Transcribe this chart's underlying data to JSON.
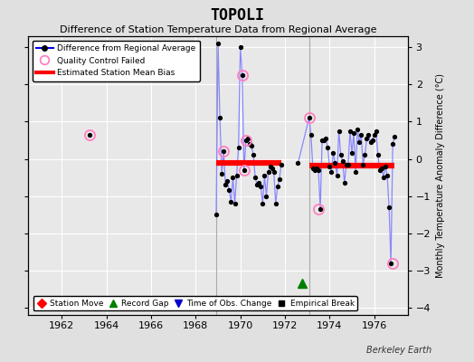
{
  "title": "TOPOLI",
  "subtitle": "Difference of Station Temperature Data from Regional Average",
  "ylabel_right": "Monthly Temperature Anomaly Difference (°C)",
  "background_color": "#e0e0e0",
  "plot_bg_color": "#e8e8e8",
  "xlim": [
    1960.5,
    1977.5
  ],
  "ylim": [
    -4.2,
    3.3
  ],
  "yticks": [
    -4,
    -3,
    -2,
    -1,
    0,
    1,
    2,
    3
  ],
  "xticks": [
    1962,
    1964,
    1966,
    1968,
    1970,
    1972,
    1974,
    1976
  ],
  "line_data_x": [
    1968.917,
    1969.0,
    1969.083,
    1969.167,
    1969.25,
    1969.333,
    1969.417,
    1969.5,
    1969.583,
    1969.667,
    1969.75,
    1969.833,
    1969.917,
    1970.0,
    1970.083,
    1970.167,
    1970.25,
    1970.333,
    1970.417,
    1970.5,
    1970.583,
    1970.667,
    1970.75,
    1970.833,
    1970.917,
    1971.0,
    1971.083,
    1971.167,
    1971.25,
    1971.333,
    1971.417,
    1971.5,
    1971.583,
    1971.667,
    1971.75,
    1971.833,
    1972.583,
    1973.083,
    1973.167,
    1973.25,
    1973.333,
    1973.417,
    1973.5,
    1973.583,
    1973.667,
    1973.75,
    1973.833,
    1973.917,
    1974.0,
    1974.083,
    1974.167,
    1974.25,
    1974.333,
    1974.417,
    1974.5,
    1974.583,
    1974.667,
    1974.75,
    1974.833,
    1974.917,
    1975.0,
    1975.083,
    1975.167,
    1975.25,
    1975.333,
    1975.417,
    1975.5,
    1975.583,
    1975.667,
    1975.75,
    1975.833,
    1975.917,
    1976.0,
    1976.083,
    1976.167,
    1976.25,
    1976.333,
    1976.417,
    1976.5,
    1976.583,
    1976.667,
    1976.75,
    1976.833,
    1976.917
  ],
  "line_data_y": [
    -1.5,
    3.1,
    1.1,
    -0.4,
    0.2,
    -0.7,
    -0.6,
    -0.85,
    -1.15,
    -0.5,
    -1.2,
    -0.45,
    0.3,
    3.0,
    2.25,
    -0.3,
    0.5,
    0.55,
    0.4,
    0.35,
    0.1,
    -0.5,
    -0.7,
    -0.65,
    -0.75,
    -1.2,
    -0.45,
    -1.0,
    -0.35,
    -0.2,
    -0.25,
    -0.35,
    -1.2,
    -0.75,
    -0.55,
    -0.15,
    -0.12,
    1.1,
    0.65,
    -0.25,
    -0.3,
    -0.25,
    -0.3,
    -1.35,
    0.5,
    0.5,
    0.55,
    0.3,
    -0.2,
    -0.35,
    0.15,
    -0.1,
    -0.45,
    0.75,
    0.1,
    -0.05,
    -0.65,
    -0.15,
    -0.15,
    0.75,
    0.15,
    0.7,
    -0.35,
    0.8,
    0.45,
    0.65,
    -0.15,
    0.1,
    0.55,
    0.65,
    0.45,
    0.5,
    0.65,
    0.75,
    0.1,
    -0.3,
    -0.25,
    -0.5,
    -0.2,
    -0.45,
    -1.3,
    -2.8,
    0.4,
    0.6
  ],
  "gap_x": 1972.75,
  "gap_y": -3.35,
  "qc_failed_x": [
    1963.25,
    1969.25,
    1970.083,
    1970.167,
    1970.25,
    1973.083,
    1973.5,
    1976.833
  ],
  "qc_failed_y": [
    0.65,
    0.2,
    2.25,
    -0.3,
    0.5,
    1.1,
    -1.35,
    -2.8
  ],
  "bias_segments": [
    {
      "x_start": 1968.917,
      "x_end": 1971.833,
      "y": -0.12
    },
    {
      "x_start": 1973.083,
      "x_end": 1976.917,
      "y": -0.18
    }
  ],
  "vline_x": [
    1968.917,
    1973.083
  ],
  "single_point_x": 1963.25,
  "single_point_y": 0.65,
  "line_color": "#8888ff",
  "line_color_dark": "#0000ee",
  "marker_color": "black",
  "qc_color": "#ff80c0",
  "bias_color": "red",
  "gap_color": "#008000",
  "vline_color": "#aaaaaa",
  "watermark": "Berkeley Earth"
}
